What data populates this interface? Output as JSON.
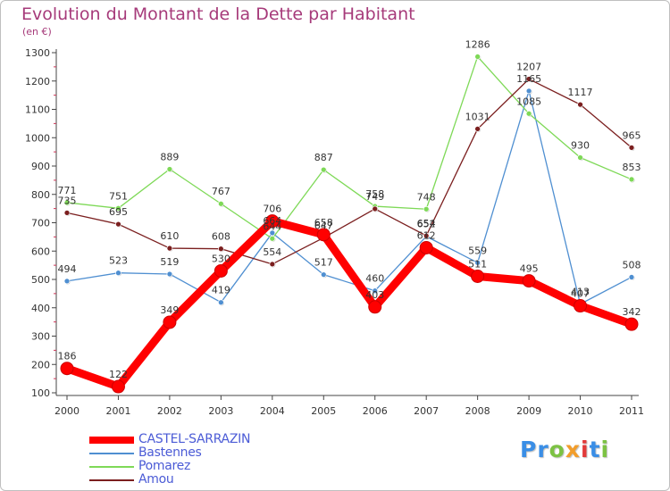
{
  "title": "Evolution du Montant de la Dette par Habitant",
  "unit_label": "(en €)",
  "logo": {
    "text": "Proxiti",
    "letter_colors": [
      "#3a8ee6",
      "#3a8ee6",
      "#7cc243",
      "#f29d2b",
      "#e23a3a",
      "#3a8ee6",
      "#7cc243"
    ]
  },
  "chart_data": {
    "type": "line",
    "title": "Evolution du Montant de la Dette par Habitant",
    "ylabel": "(en €)",
    "xlabel": "",
    "x": [
      "2000",
      "2001",
      "2002",
      "2003",
      "2004",
      "2005",
      "2006",
      "2007",
      "2008",
      "2009",
      "2010",
      "2011"
    ],
    "ylim": [
      100,
      1300
    ],
    "yticks": [
      100,
      200,
      300,
      400,
      500,
      600,
      700,
      800,
      900,
      1000,
      1100,
      1200,
      1300
    ],
    "grid": false,
    "legend_position": "bottom-left",
    "series": [
      {
        "name": "CASTEL-SARRAZIN",
        "color": "#ff0000",
        "values": [
          186,
          122,
          349,
          530,
          706,
          658,
          403,
          612,
          511,
          495,
          407,
          342
        ],
        "highlight": true
      },
      {
        "name": "Bastennes",
        "color": "#4f8fd1",
        "values": [
          494,
          523,
          519,
          419,
          664,
          517,
          460,
          652,
          559,
          1165,
          413,
          508
        ]
      },
      {
        "name": "Pomarez",
        "color": "#7ed957",
        "values": [
          771,
          751,
          889,
          767,
          644,
          887,
          758,
          748,
          1286,
          1085,
          930,
          853
        ]
      },
      {
        "name": "Amou",
        "color": "#7b1f1f",
        "values": [
          735,
          695,
          610,
          608,
          554,
          647,
          749,
          654,
          1031,
          1207,
          1117,
          965
        ]
      }
    ]
  }
}
